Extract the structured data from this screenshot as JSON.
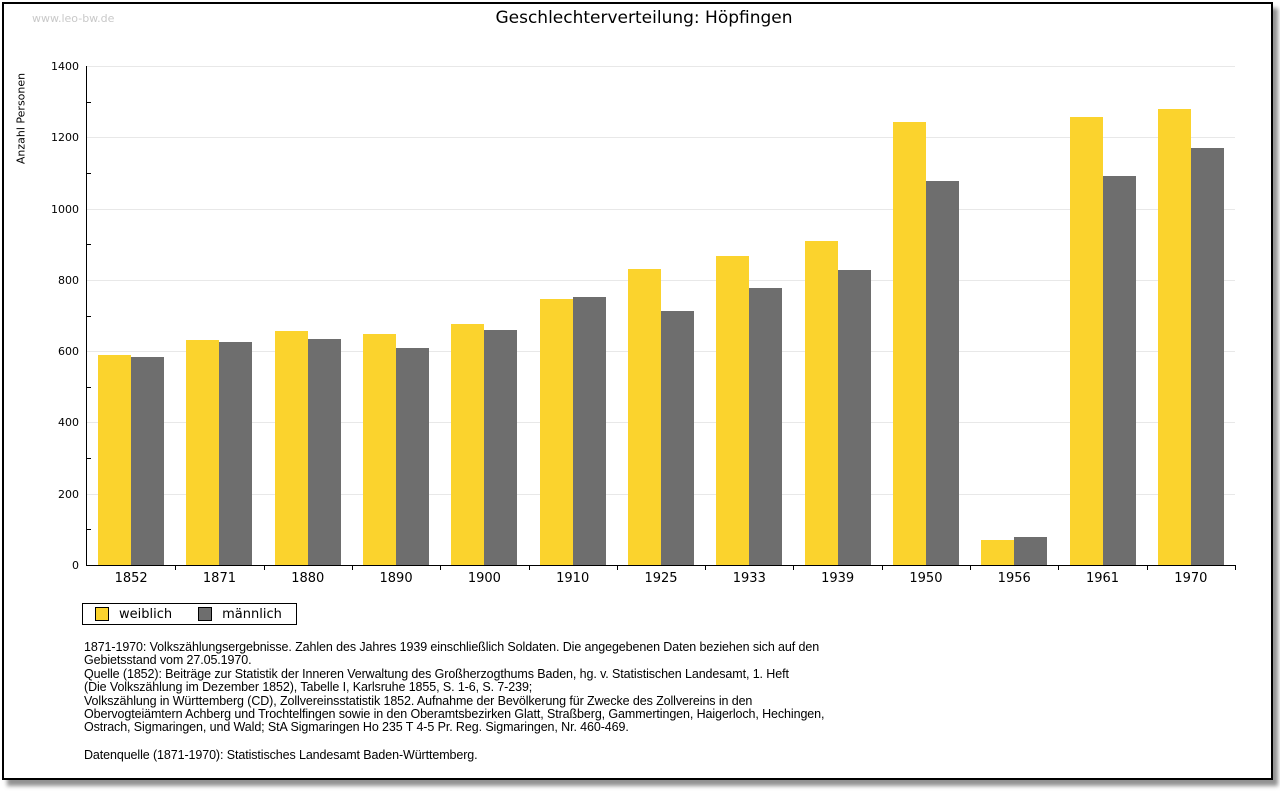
{
  "watermark": "www.leo-bw.de",
  "title": "Geschlechterverteilung: Höpfingen",
  "chart_data": {
    "type": "bar",
    "title": "Geschlechterverteilung: Höpfingen",
    "xlabel": "",
    "ylabel": "Anzahl Personen",
    "ylim": [
      0,
      1400
    ],
    "ytick_interval": 200,
    "ytick_minor_interval": 100,
    "grid": true,
    "legend_position": "bottom-left",
    "categories": [
      "1852",
      "1871",
      "1880",
      "1890",
      "1900",
      "1910",
      "1925",
      "1933",
      "1939",
      "1950",
      "1956",
      "1961",
      "1970"
    ],
    "series": [
      {
        "name": "weiblich",
        "color": "#FBD32D",
        "values": [
          588,
          631,
          657,
          647,
          676,
          747,
          831,
          868,
          909,
          1243,
          71,
          1257,
          1279
        ]
      },
      {
        "name": "männlich",
        "color": "#6E6E6E",
        "values": [
          584,
          627,
          634,
          609,
          660,
          753,
          714,
          777,
          829,
          1078,
          80,
          1091,
          1170
        ]
      }
    ]
  },
  "legend": {
    "items": [
      {
        "label": "weiblich",
        "color": "#FBD32D"
      },
      {
        "label": "männlich",
        "color": "#6E6E6E"
      }
    ]
  },
  "footnotes": [
    "1871-1970: Volkszählungsergebnisse. Zahlen des Jahres 1939 einschließlich Soldaten. Die angegebenen Daten beziehen sich auf den",
    "Gebietsstand vom 27.05.1970.",
    "Quelle (1852): Beiträge zur Statistik der Inneren Verwaltung des Großherzogthums Baden, hg. v. Statistischen Landesamt, 1. Heft",
    "(Die Volkszählung im Dezember 1852), Tabelle I, Karlsruhe 1855, S. 1-6, S. 7-239;",
    "Volkszählung in Württemberg (CD), Zollvereinsstatistik 1852. Aufnahme der Bevölkerung für Zwecke des Zollvereins in den",
    "Obervogteiämtern Achberg und Trochtelfingen sowie in den Oberamtsbezirken Glatt, Straßberg, Gammertingen, Haigerloch, Hechingen,",
    "Ostrach, Sigmaringen, und Wald; StA Sigmaringen Ho 235 T 4-5 Pr. Reg. Sigmaringen, Nr. 460-469."
  ],
  "datasource": "Datenquelle (1871-1970): Statistisches Landesamt Baden-Württemberg."
}
